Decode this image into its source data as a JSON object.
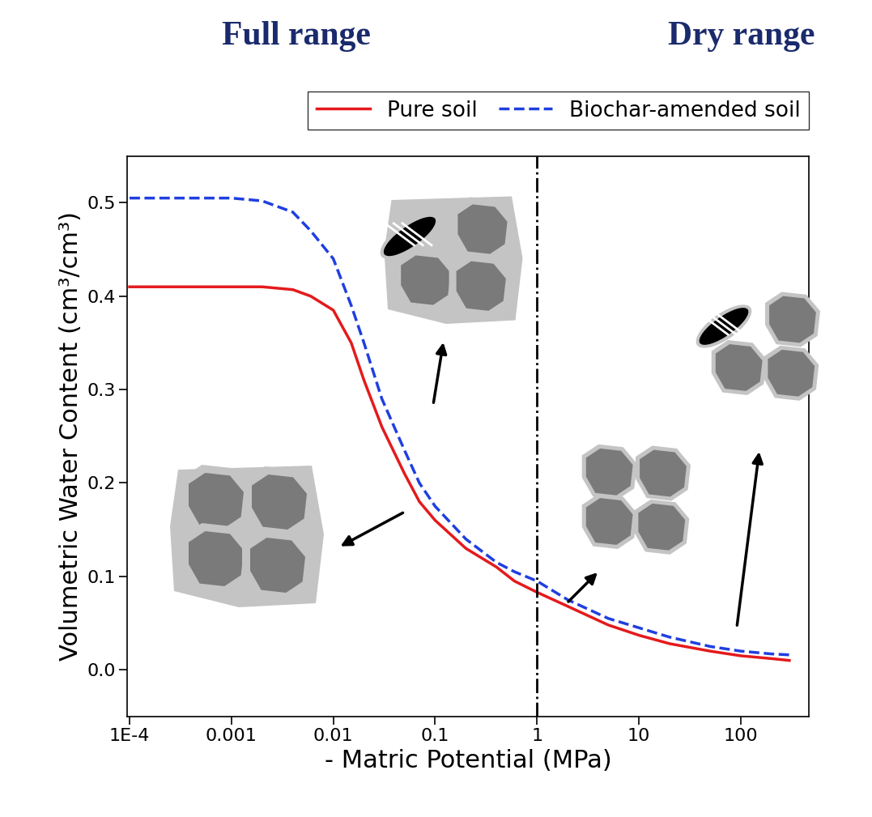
{
  "chart_data": {
    "type": "line",
    "xlabel": "- Matric Potential (MPa)",
    "ylabel": "Volumetric Water Content (cm³/cm³)",
    "log": "x",
    "grid": false,
    "legend": "upper right",
    "xlim": [
      9.5e-05,
      470
    ],
    "ylim": [
      -0.05,
      0.55
    ],
    "xticks": [
      {
        "value": 0.0001,
        "label": "1E-4"
      },
      0.001,
      0.01,
      0.1,
      1,
      10,
      100
    ],
    "yticks": [
      0.0,
      0.1,
      0.2,
      0.3,
      0.4,
      0.5
    ],
    "divider": 1,
    "annotations": [
      "Full range",
      "Dry range"
    ],
    "x": [
      0.0001,
      0.001,
      0.002,
      0.004,
      0.006,
      0.01,
      0.015,
      0.02,
      0.03,
      0.05,
      0.07,
      0.1,
      0.2,
      0.4,
      0.6,
      1,
      2,
      5,
      10,
      20,
      50,
      100,
      200,
      300
    ],
    "series": [
      {
        "name": "Pure soil",
        "color": "#e41a1c",
        "line_style": "solid",
        "values": [
          0.41,
          0.41,
          0.41,
          0.407,
          0.4,
          0.385,
          0.35,
          0.31,
          0.26,
          0.21,
          0.18,
          0.16,
          0.13,
          0.11,
          0.095,
          0.083,
          0.068,
          0.048,
          0.037,
          0.028,
          0.02,
          0.015,
          0.012,
          0.01
        ]
      },
      {
        "name": "Biochar-amended soil",
        "color": "#1f3fe0",
        "line_style": "dashed",
        "values": [
          0.505,
          0.505,
          0.502,
          0.49,
          0.47,
          0.44,
          0.39,
          0.35,
          0.29,
          0.235,
          0.2,
          0.175,
          0.14,
          0.115,
          0.105,
          0.095,
          0.075,
          0.055,
          0.045,
          0.035,
          0.025,
          0.02,
          0.017,
          0.016
        ]
      }
    ]
  }
}
